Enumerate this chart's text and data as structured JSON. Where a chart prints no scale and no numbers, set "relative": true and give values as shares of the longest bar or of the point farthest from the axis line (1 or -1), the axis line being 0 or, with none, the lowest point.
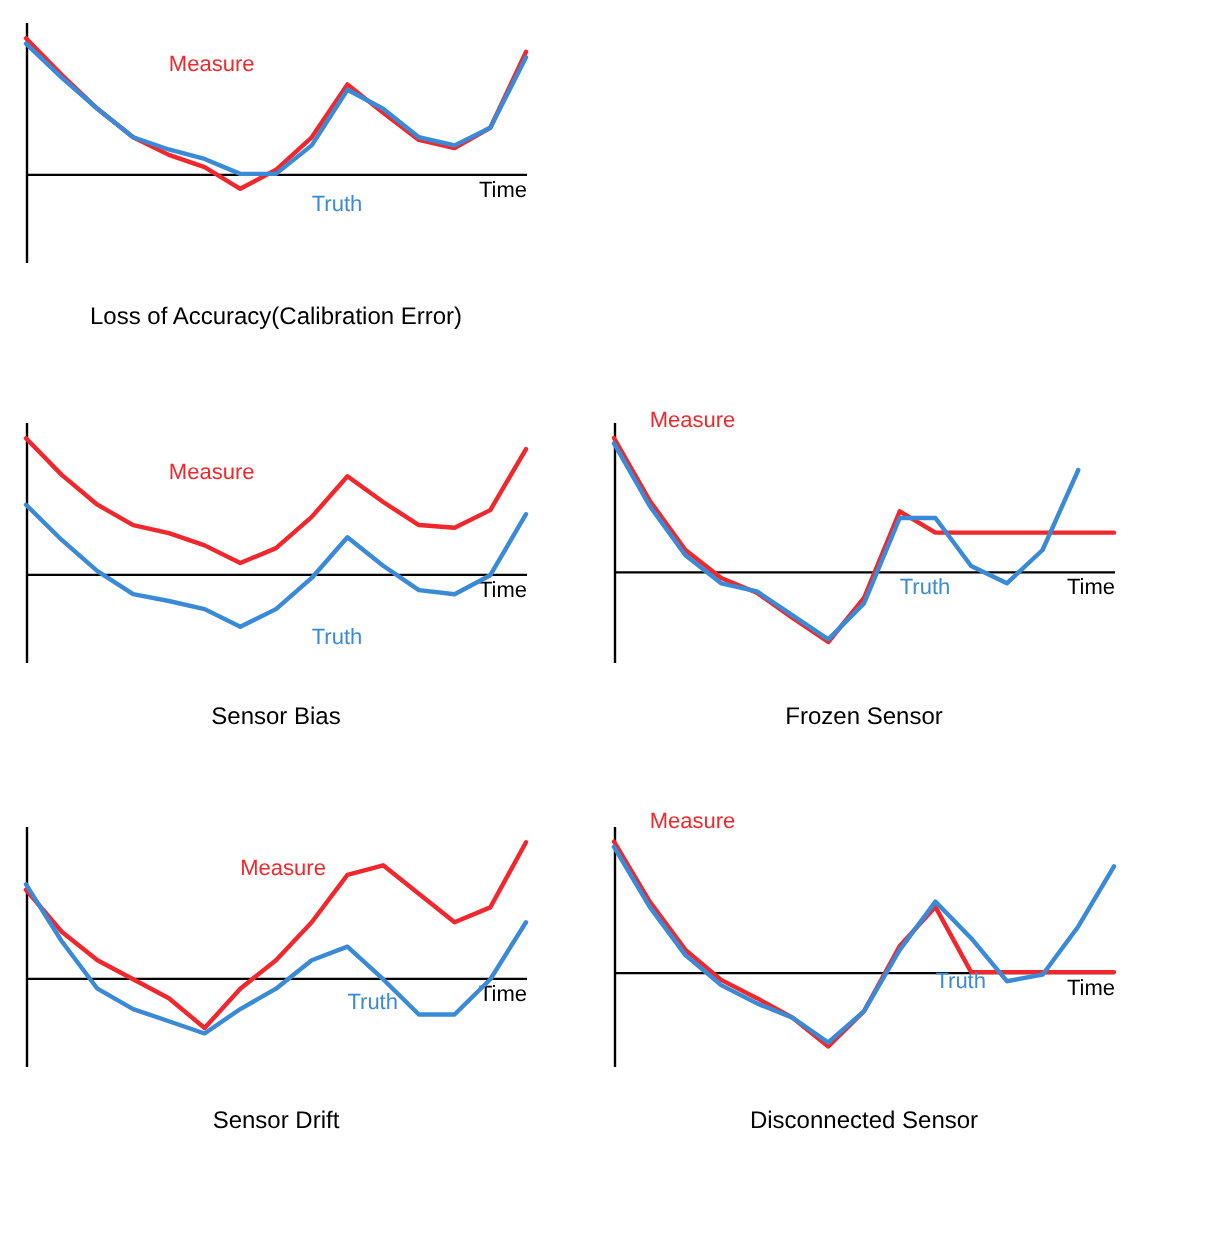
{
  "chart_data": [
    {
      "type": "line",
      "title": "Loss of Accuracy(Calibration Error)",
      "xlabel": "Time",
      "relative": true,
      "categories": [
        null,
        null,
        null,
        null,
        null,
        null,
        null,
        null,
        null,
        null,
        null,
        null,
        null,
        null,
        null
      ],
      "series": [
        {
          "name": "Measure",
          "color": "#f0282d",
          "values": [
            1,
            0.73,
            0.48,
            0.27,
            0.14,
            0.05,
            -0.11,
            0.03,
            0.27,
            0.66,
            0.45,
            0.25,
            0.19,
            0.34,
            0.9
          ]
        },
        {
          "name": "Truth",
          "color": "#3a8ad6",
          "values": [
            0.96,
            0.71,
            0.48,
            0.27,
            0.18,
            0.11,
            0,
            0,
            0.21,
            0.62,
            0.48,
            0.27,
            0.21,
            0.34,
            0.86
          ]
        }
      ]
    },
    {
      "type": "line",
      "title": "Sensor Bias",
      "xlabel": "Time",
      "relative": true,
      "categories": [
        null,
        null,
        null,
        null,
        null,
        null,
        null,
        null,
        null,
        null,
        null,
        null,
        null,
        null,
        null
      ],
      "series": [
        {
          "name": "Measure",
          "color": "#f0282d",
          "values": [
            1,
            0.73,
            0.51,
            0.36,
            0.3,
            0.21,
            0.08,
            0.19,
            0.42,
            0.72,
            0.53,
            0.36,
            0.34,
            0.47,
            0.92
          ]
        },
        {
          "name": "Truth",
          "color": "#3a8ad6",
          "values": [
            0.51,
            0.25,
            0.02,
            -0.15,
            -0.2,
            -0.26,
            -0.39,
            -0.26,
            -0.03,
            0.27,
            0.06,
            -0.12,
            -0.15,
            -0.01,
            0.44
          ]
        }
      ]
    },
    {
      "type": "line",
      "title": "Frozen Sensor",
      "xlabel": "Time",
      "relative": true,
      "categories": [
        null,
        null,
        null,
        null,
        null,
        null,
        null,
        null,
        null,
        null,
        null,
        null,
        null,
        null,
        null
      ],
      "series": [
        {
          "name": "Measure",
          "color": "#f0282d",
          "values": [
            1,
            0.53,
            0.16,
            -0.05,
            -0.16,
            -0.35,
            -0.53,
            -0.2,
            0.45,
            0.29,
            0.29,
            0.29,
            0.29,
            0.29,
            0.29
          ]
        },
        {
          "name": "Truth",
          "color": "#3a8ad6",
          "values": [
            0.96,
            0.49,
            0.12,
            -0.09,
            -0.15,
            -0.33,
            -0.51,
            -0.24,
            0.4,
            0.4,
            0.04,
            -0.09,
            0.16,
            0.76,
            null
          ]
        }
      ]
    },
    {
      "type": "line",
      "title": "Sensor Drift",
      "xlabel": "Time",
      "relative": true,
      "categories": [
        null,
        null,
        null,
        null,
        null,
        null,
        null,
        null,
        null,
        null,
        null,
        null,
        null,
        null,
        null
      ],
      "series": [
        {
          "name": "Measure",
          "color": "#f0282d",
          "values": [
            0.65,
            0.34,
            0.13,
            -0.01,
            -0.15,
            -0.37,
            -0.08,
            0.13,
            0.41,
            0.76,
            0.83,
            0.62,
            0.41,
            0.52,
            1
          ]
        },
        {
          "name": "Truth",
          "color": "#3a8ad6",
          "values": [
            0.69,
            0.27,
            -0.08,
            -0.23,
            -0.32,
            -0.41,
            -0.23,
            -0.08,
            0.13,
            0.23,
            -0.01,
            -0.27,
            -0.27,
            -0.01,
            0.41
          ]
        }
      ]
    },
    {
      "type": "line",
      "title": "Disconnected Sensor",
      "xlabel": "Time",
      "relative": true,
      "categories": [
        null,
        null,
        null,
        null,
        null,
        null,
        null,
        null,
        null,
        null,
        null,
        null,
        null,
        null,
        null
      ],
      "series": [
        {
          "name": "Measure",
          "color": "#f0282d",
          "values": [
            1,
            0.54,
            0.17,
            -0.06,
            -0.2,
            -0.35,
            -0.57,
            -0.3,
            0.2,
            0.5,
            0,
            0,
            0,
            0,
            0
          ]
        },
        {
          "name": "Truth",
          "color": "#3a8ad6",
          "values": [
            0.96,
            0.5,
            0.13,
            -0.1,
            -0.24,
            -0.35,
            -0.54,
            -0.3,
            0.17,
            0.54,
            0.26,
            -0.07,
            -0.02,
            0.35,
            0.81
          ]
        }
      ]
    }
  ]
}
